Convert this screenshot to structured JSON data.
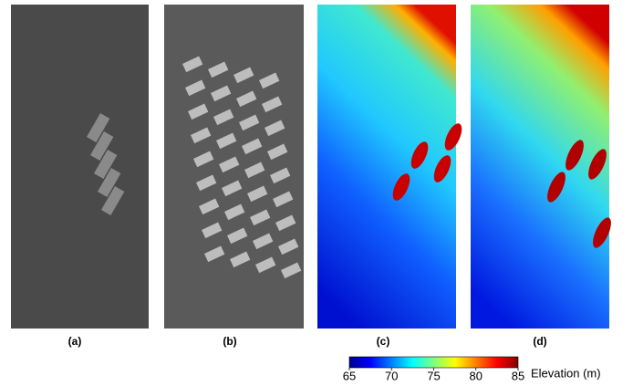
{
  "panels": [
    {
      "label": "(a)"
    },
    {
      "label": "(b)"
    },
    {
      "label": "(c)"
    },
    {
      "label": "(d)"
    }
  ],
  "colorbar": {
    "label": "Elevation (m)",
    "range": [
      65,
      85
    ],
    "ticks": [
      65,
      70,
      75,
      80,
      85
    ]
  }
}
